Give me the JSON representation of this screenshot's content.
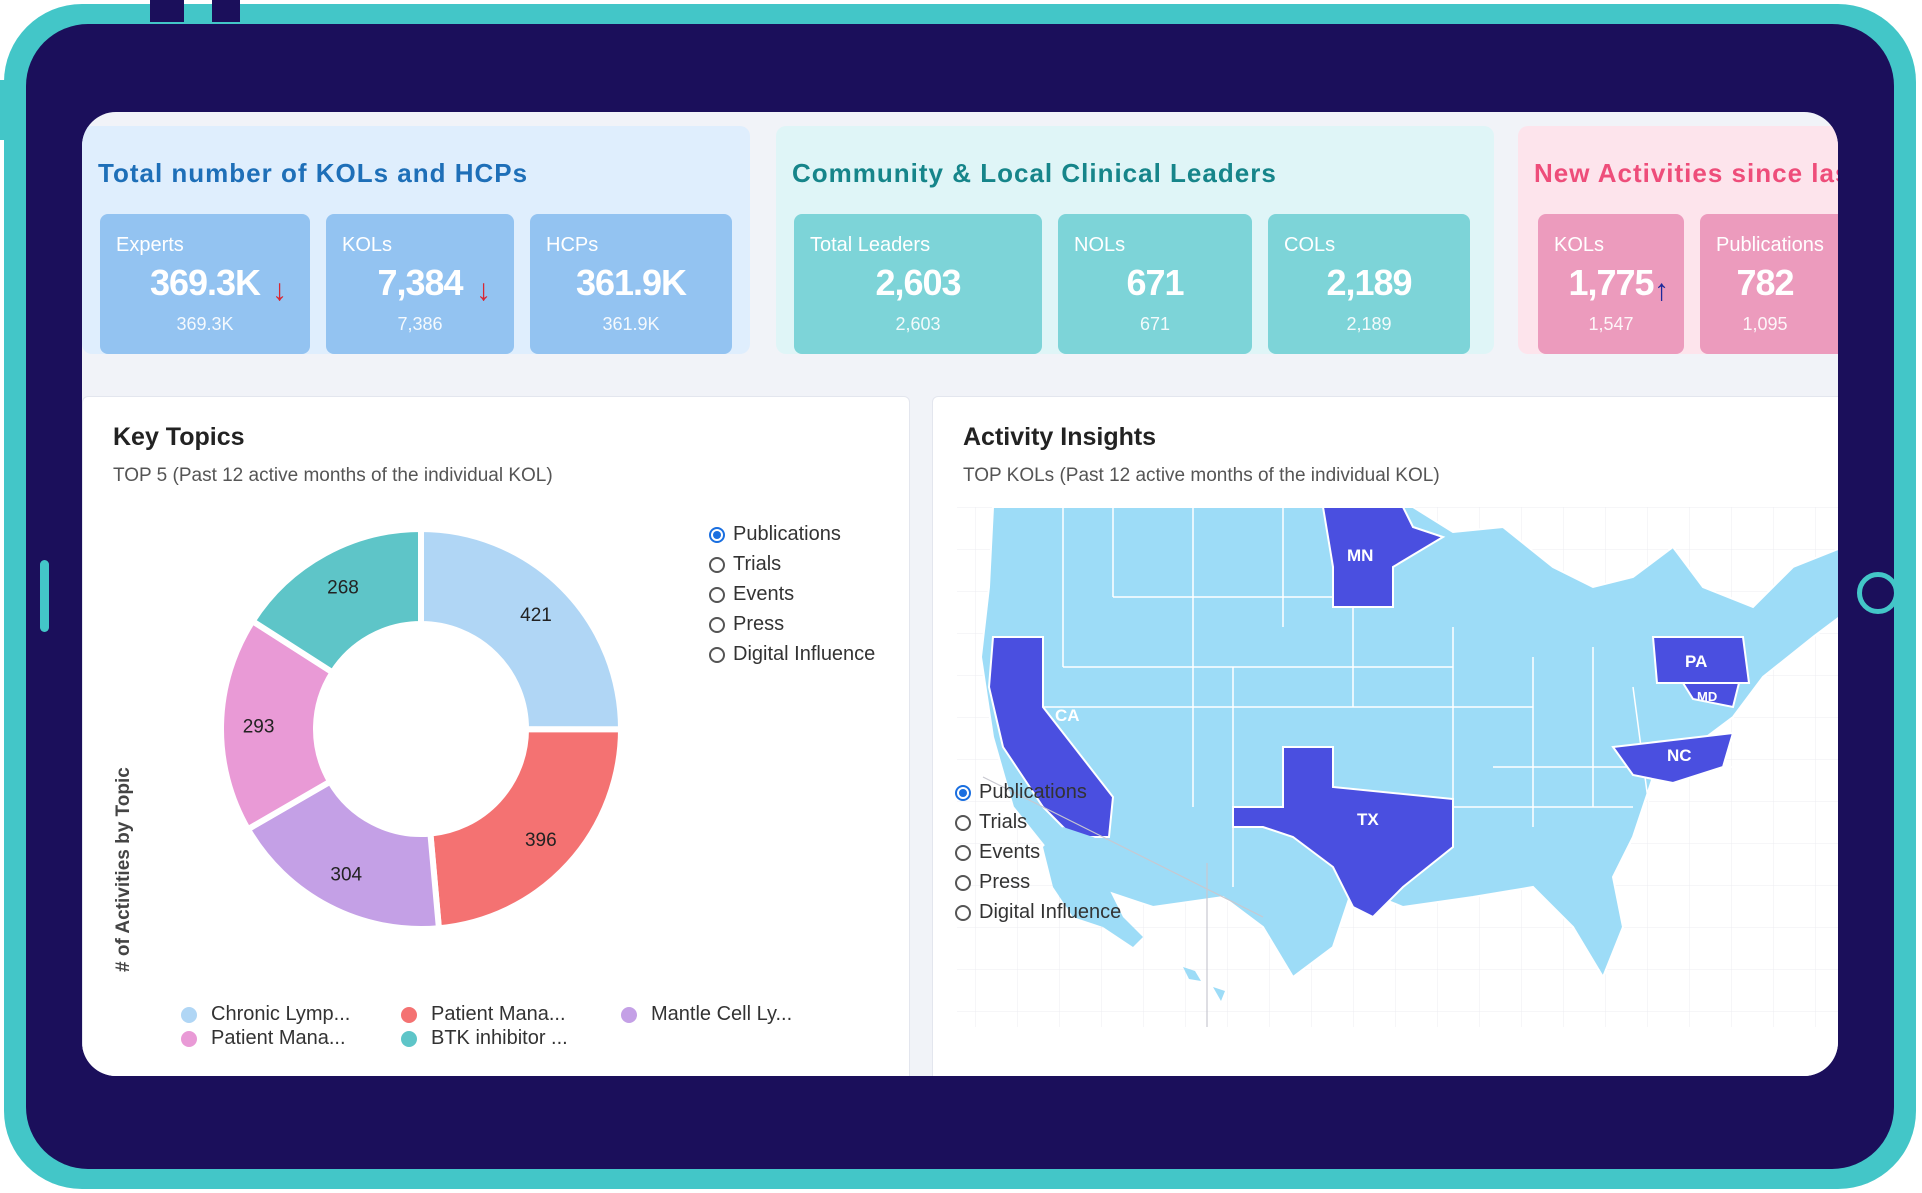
{
  "colors": {
    "frame": "#43c6c8",
    "bezel": "#1b0f5b",
    "blue_title": "#1e6fb8",
    "teal_title": "#16858a",
    "pink_title": "#ee4d7a",
    "state_highlight": "#4a4fe0",
    "state_base": "#9ddcf7"
  },
  "kpi_total": {
    "title": "Total number of KOLs and HCPs",
    "cards": [
      {
        "label": "Experts",
        "value": "369.3K",
        "sub": "369.3K",
        "trend": "↓"
      },
      {
        "label": "KOLs",
        "value": "7,384",
        "sub": "7,386",
        "trend": "↓"
      },
      {
        "label": "HCPs",
        "value": "361.9K",
        "sub": "361.9K"
      }
    ]
  },
  "kpi_community": {
    "title": "Community & Local Clinical Leaders",
    "cards": [
      {
        "label": "Total Leaders",
        "value": "2,603",
        "sub": "2,603"
      },
      {
        "label": "NOLs",
        "value": "671",
        "sub": "671"
      },
      {
        "label": "COLs",
        "value": "2,189",
        "sub": "2,189"
      }
    ]
  },
  "kpi_new": {
    "title": "New Activities since las",
    "cards": [
      {
        "label": "KOLs",
        "value": "1,775",
        "sub": "1,547",
        "trend": "↑"
      },
      {
        "label": "Publications",
        "value": "782",
        "sub": "1,095"
      }
    ]
  },
  "key_topics": {
    "title": "Key Topics",
    "subtitle": "TOP 5 (Past 12 active months of the individual KOL)",
    "ylabel": "# of Activities by Topic",
    "options": [
      "Publications",
      "Trials",
      "Events",
      "Press",
      "Digital Influence"
    ],
    "selected": "Publications",
    "legend": [
      "Chronic Lymp...",
      "Patient Mana...",
      "Mantle Cell Ly...",
      "Patient Mana...",
      "BTK inhibitor ..."
    ]
  },
  "chart_data": {
    "type": "pie",
    "title": "Key Topics",
    "slices": [
      {
        "label": "Chronic Lymp...",
        "value": 421,
        "color": "#b0d6f5"
      },
      {
        "label": "Patient Mana...",
        "value": 396,
        "color": "#f47272"
      },
      {
        "label": "Mantle Cell Ly...",
        "value": 304,
        "color": "#c4a0e6"
      },
      {
        "label": "Patient Mana...",
        "value": 293,
        "color": "#e99ad6"
      },
      {
        "label": "BTK inhibitor ...",
        "value": 268,
        "color": "#5ec5c8"
      }
    ]
  },
  "activity": {
    "title": "Activity Insights",
    "subtitle": "TOP KOLs (Past 12 active months of the individual KOL)",
    "options": [
      "Publications",
      "Trials",
      "Events",
      "Press",
      "Digital Influence"
    ],
    "selected": "Publications",
    "highlighted_states": [
      "MN",
      "PA",
      "MD",
      "CA",
      "NC",
      "TX"
    ]
  }
}
